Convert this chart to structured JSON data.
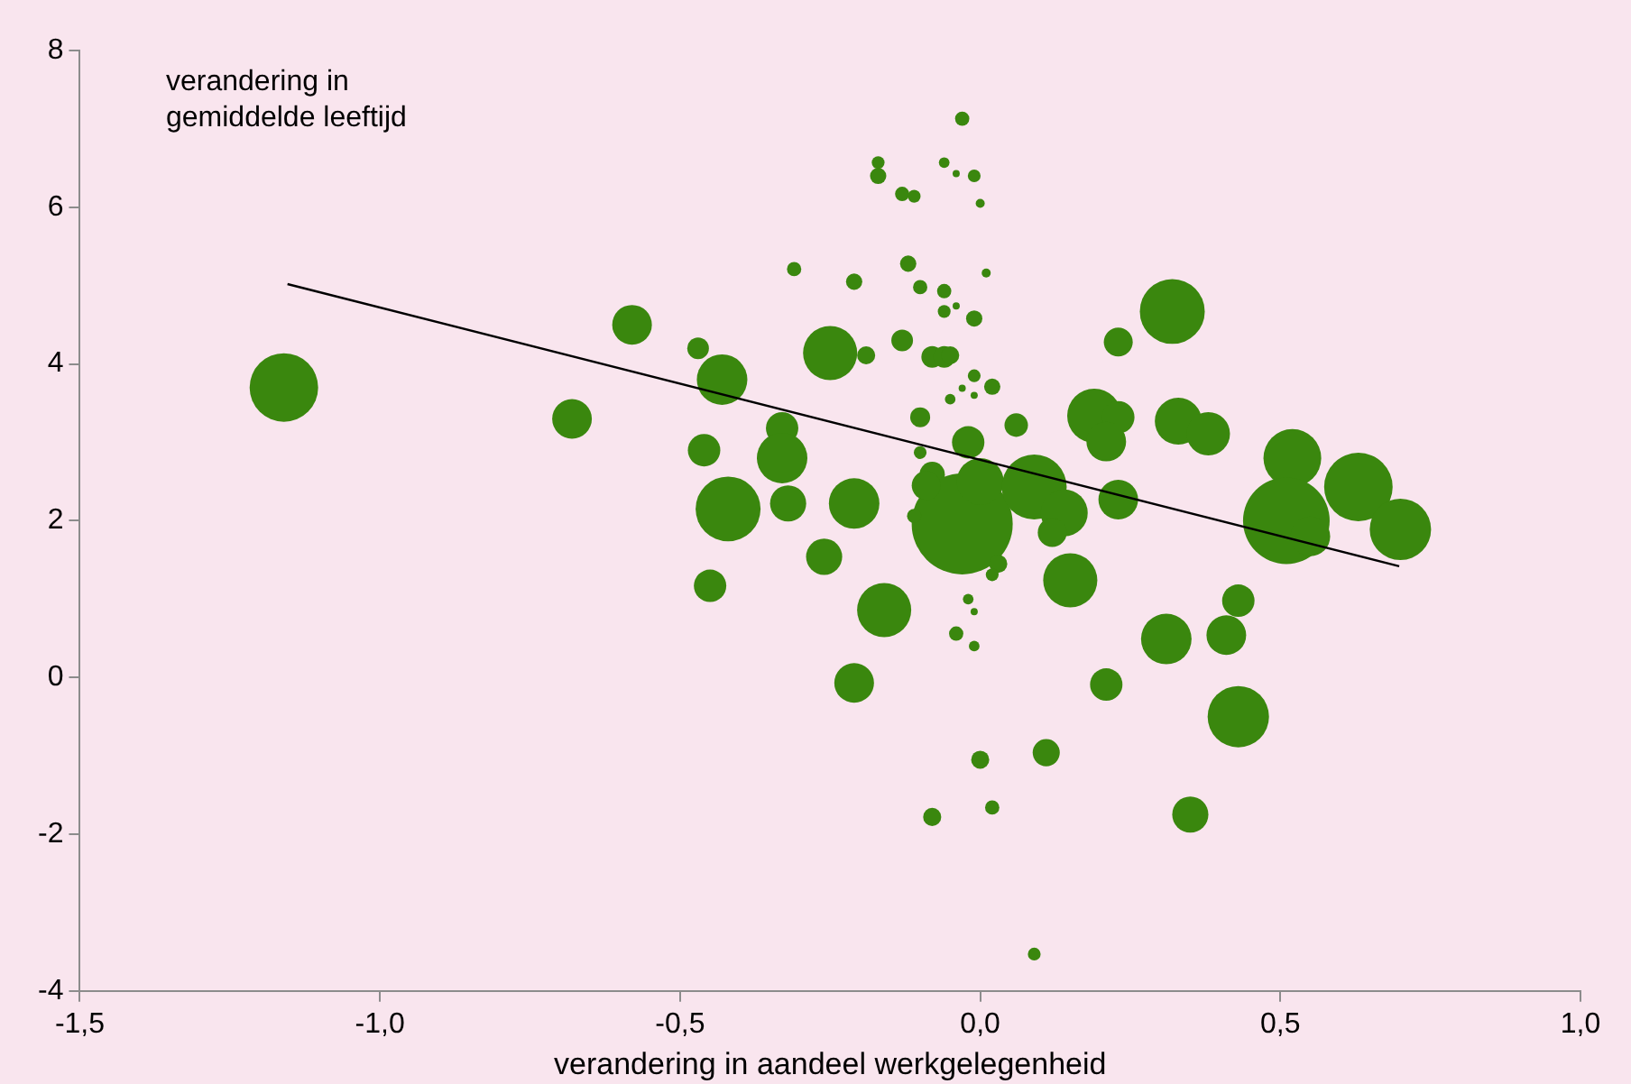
{
  "chart_data": {
    "type": "bubble",
    "xlabel": "verandering in aandeel werkgelegenheid",
    "ylabel": "verandering in gemiddelde leeftijd",
    "xlim": [
      -1.5,
      1.0
    ],
    "xticks": [
      {
        "value": -1.5,
        "label": "-1,5"
      },
      {
        "value": -1.0,
        "label": "-1,0"
      },
      {
        "value": -0.5,
        "label": "-0,5"
      },
      {
        "value": 0,
        "label": "0,0"
      },
      {
        "value": 0.5,
        "label": "0,5"
      },
      {
        "value": 1.0,
        "label": "1,0"
      }
    ],
    "ylim": [
      -4,
      8
    ],
    "yticks": [
      -4,
      -2,
      0,
      2,
      4,
      6,
      8
    ],
    "series": [
      {
        "type": "bubble",
        "color": "#3a870e",
        "marker": "circle",
        "x": [
          -1.16,
          -0.68,
          -0.58,
          -0.47,
          -0.43,
          -0.46,
          -0.42,
          -0.45,
          -0.33,
          -0.33,
          -0.32,
          -0.21,
          -0.26,
          -0.16,
          -0.21,
          -0.25,
          -0.19,
          -0.31,
          -0.21,
          -0.12,
          -0.1,
          -0.06,
          -0.04,
          -0.06,
          -0.01,
          0.01,
          -0.13,
          -0.08,
          -0.06,
          -0.05,
          -0.01,
          -0.03,
          -0.01,
          0.02,
          -0.05,
          -0.1,
          0.06,
          -0.03,
          -0.17,
          -0.17,
          -0.13,
          -0.11,
          -0.06,
          -0.04,
          -0.01,
          0.0,
          -0.02,
          -0.1,
          -0.08,
          -0.03,
          0.0,
          -0.09,
          -0.11,
          0.09,
          0.14,
          0.12,
          0.23,
          0.15,
          0.03,
          0.02,
          -0.02,
          -0.01,
          -0.04,
          -0.01,
          0.32,
          0.23,
          0.19,
          0.23,
          0.21,
          0.33,
          0.38,
          0.52,
          0.51,
          0.55,
          0.63,
          0.7,
          0.31,
          0.43,
          0.41,
          0.43,
          0.21,
          0.11,
          0.0,
          0.02,
          -0.08,
          0.35,
          0.09
        ],
        "values": [
          3.7,
          3.3,
          4.5,
          4.2,
          3.8,
          2.9,
          2.15,
          1.17,
          3.18,
          2.8,
          2.22,
          2.22,
          1.54,
          0.86,
          -0.07,
          4.14,
          4.11,
          5.21,
          5.05,
          5.28,
          4.98,
          4.93,
          4.74,
          4.67,
          4.58,
          5.16,
          4.3,
          4.09,
          4.09,
          4.11,
          3.85,
          3.69,
          3.6,
          3.71,
          3.55,
          3.32,
          3.22,
          7.13,
          6.57,
          6.4,
          6.17,
          6.14,
          6.57,
          6.43,
          6.4,
          6.05,
          3.0,
          2.87,
          2.59,
          1.96,
          2.5,
          2.45,
          2.06,
          2.43,
          2.1,
          1.85,
          2.27,
          1.24,
          1.45,
          1.31,
          1.0,
          0.84,
          0.56,
          0.4,
          4.67,
          4.28,
          3.34,
          3.32,
          3.01,
          3.27,
          3.11,
          2.8,
          2.0,
          1.8,
          2.43,
          1.89,
          0.49,
          0.98,
          0.54,
          -0.5,
          -0.09,
          -0.96,
          -1.05,
          -1.66,
          -1.78,
          -1.75,
          -3.53
        ],
        "sizes": [
          0.46,
          0.154,
          0.154,
          0.046,
          0.25,
          0.103,
          0.413,
          0.103,
          0.103,
          0.25,
          0.128,
          0.25,
          0.128,
          0.287,
          0.154,
          0.287,
          0.032,
          0.02,
          0.026,
          0.026,
          0.02,
          0.02,
          0.005,
          0.016,
          0.026,
          0.008,
          0.046,
          0.046,
          0.046,
          0.032,
          0.016,
          0.005,
          0.005,
          0.026,
          0.011,
          0.039,
          0.054,
          0.02,
          0.016,
          0.026,
          0.02,
          0.016,
          0.011,
          0.005,
          0.016,
          0.008,
          0.103,
          0.016,
          0.063,
          1,
          0.216,
          0.082,
          0.02,
          0.413,
          0.216,
          0.082,
          0.154,
          0.287,
          0.032,
          0.016,
          0.011,
          0.005,
          0.02,
          0.011,
          0.413,
          0.082,
          0.287,
          0.103,
          0.154,
          0.216,
          0.184,
          0.327,
          0.735,
          0.154,
          0.46,
          0.369,
          0.25,
          0.103,
          0.154,
          0.369,
          0.103,
          0.072,
          0.032,
          0.02,
          0.032,
          0.128,
          0.016
        ]
      },
      {
        "type": "line",
        "color": "#000000",
        "line_style": "solid",
        "x": [
          -1.154,
          0.698
        ],
        "values": [
          5.02,
          1.42
        ]
      }
    ]
  }
}
